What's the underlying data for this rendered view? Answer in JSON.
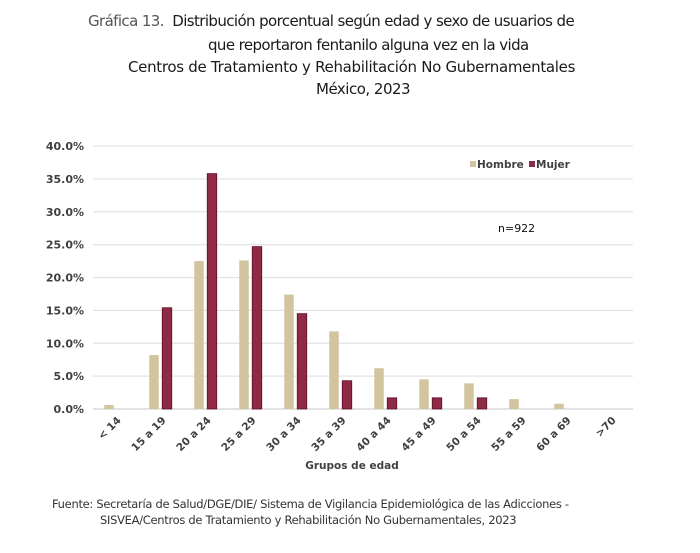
{
  "header": {
    "prefix": "Gráfica 13.",
    "line1": "Distribución porcentual según edad y sexo de usuarios de",
    "line2": "que reportaron fentanilo alguna vez en la vida",
    "line3": "Centros de Tratamiento y Rehabilitación No Gubernamentales",
    "line4": "México, 2023"
  },
  "source": {
    "line1": "Fuente: Secretaría de Salud/DGE/DIE/  Sistema de Vigilancia Epidemiológica de las Adicciones -",
    "line2": "SISVEA/Centros de Tratamiento y Rehabilitación No Gubernamentales, 2023"
  },
  "chart_data": {
    "type": "bar",
    "title": "Distribución porcentual según edad y sexo de usuarios de que reportaron fentanilo alguna vez en la vida",
    "xlabel": "Grupos de edad",
    "ylabel": "",
    "ylim": [
      0,
      40
    ],
    "yticks": [
      0,
      5,
      10,
      15,
      20,
      25,
      30,
      35,
      40
    ],
    "ytick_labels": [
      "0.0%",
      "5.0%",
      "10.0%",
      "15.0%",
      "20.0%",
      "25.0%",
      "30.0%",
      "35.0%",
      "40.0%"
    ],
    "grid": true,
    "legend_position": "top-right",
    "annotation": "n=922",
    "categories": [
      "< 14",
      "15 a 19",
      "20 a 24",
      "25 a 29",
      "30 a 34",
      "35 a 39",
      "40 a 44",
      "45 a 49",
      "50 a 54",
      "55 a 59",
      "60 a 69",
      ">70"
    ],
    "series": [
      {
        "name": "Hombre",
        "color": "#d3c4a0",
        "values": [
          0.6,
          8.2,
          22.5,
          22.6,
          17.4,
          11.8,
          6.2,
          4.5,
          3.9,
          1.5,
          0.8,
          0
        ]
      },
      {
        "name": "Mujer",
        "color": "#8e2a45",
        "values": [
          0,
          15.4,
          35.8,
          24.7,
          14.5,
          4.3,
          1.7,
          1.7,
          1.7,
          0,
          0,
          0
        ]
      }
    ]
  }
}
